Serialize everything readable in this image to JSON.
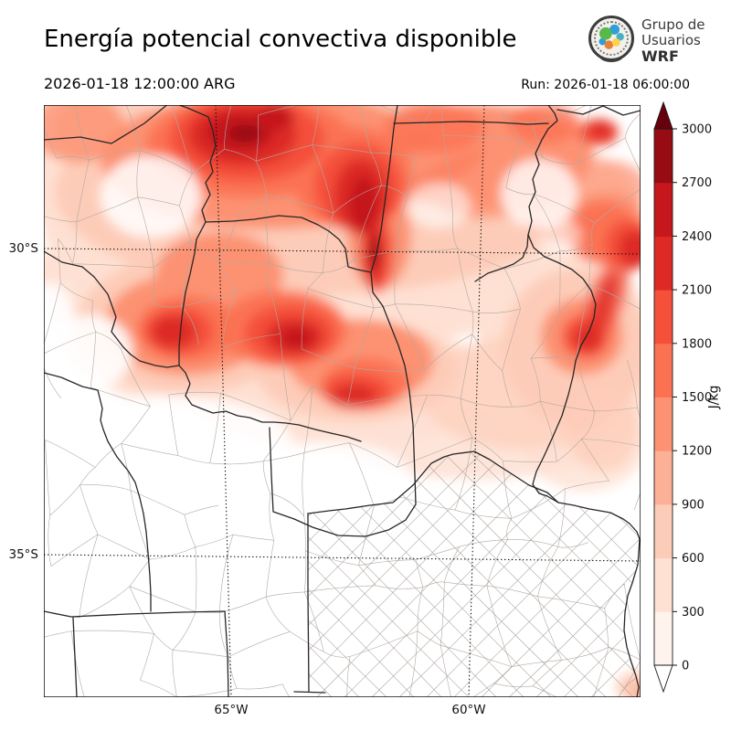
{
  "header": {
    "title": "Energía potencial convectiva disponible",
    "valid_time": "2026-01-18 12:00:00 ARG",
    "run_label": "Run: 2026-01-18 06:00:00"
  },
  "logo": {
    "line1": "Grupo de",
    "line2": "Usuarios",
    "line3": "WRF"
  },
  "map": {
    "lat_labels": [
      "30°S",
      "35°S"
    ],
    "lon_labels": [
      "65°W",
      "60°W"
    ]
  },
  "colorbar": {
    "unit": "J/kg",
    "values": [
      "0",
      "300",
      "600",
      "900",
      "1200",
      "1500",
      "1800",
      "2100",
      "2400",
      "2700",
      "3000"
    ],
    "segment_colors": [
      "#fff3ed",
      "#fee1d3",
      "#fdccb8",
      "#fcb096",
      "#fc9272",
      "#fb7252",
      "#f4503a",
      "#dd2a25",
      "#c5171c",
      "#970b13"
    ],
    "over_color": "#67000d",
    "under_color": "#ffffff",
    "outline_color": "#1a1a1a"
  }
}
